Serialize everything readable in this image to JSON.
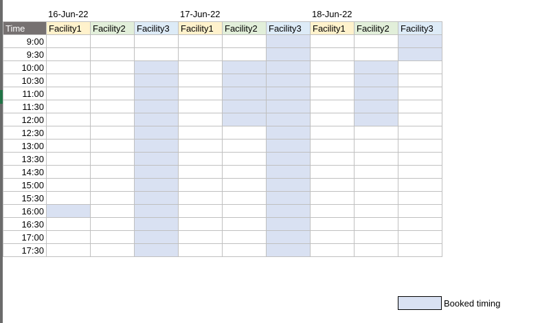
{
  "dates": [
    "16-Jun-22",
    "17-Jun-22",
    "18-Jun-22"
  ],
  "time_header": "Time",
  "facilities": [
    "Facility1",
    "Facility2",
    "Facility3"
  ],
  "facility_colors": {
    "Facility1": "#FFF2CC",
    "Facility2": "#E2EFDA",
    "Facility3": "#DDEBF7"
  },
  "booked_color": "#D9E1F2",
  "times": [
    "9:00",
    "9:30",
    "10:00",
    "10:30",
    "11:00",
    "11:30",
    "12:00",
    "12:30",
    "13:00",
    "13:30",
    "14:30",
    "15:00",
    "15:30",
    "16:00",
    "16:30",
    "17:00",
    "17:30"
  ],
  "bookings": {
    "16-Jun-22": {
      "Facility1": [
        "16:00"
      ],
      "Facility2": [],
      "Facility3": [
        "10:00",
        "10:30",
        "11:00",
        "11:30",
        "12:00",
        "12:30",
        "13:00",
        "13:30",
        "14:30",
        "15:00",
        "15:30",
        "16:00",
        "16:30",
        "17:00",
        "17:30"
      ]
    },
    "17-Jun-22": {
      "Facility1": [],
      "Facility2": [
        "10:00",
        "10:30",
        "11:00",
        "11:30",
        "12:00"
      ],
      "Facility3": [
        "9:00",
        "9:30",
        "10:00",
        "10:30",
        "11:00",
        "11:30",
        "12:00",
        "12:30",
        "13:00",
        "13:30",
        "14:30",
        "15:00",
        "15:30",
        "16:00",
        "16:30",
        "17:00",
        "17:30"
      ]
    },
    "18-Jun-22": {
      "Facility1": [],
      "Facility2": [
        "10:00",
        "10:30",
        "11:00",
        "11:30",
        "12:00"
      ],
      "Facility3": [
        "9:00",
        "9:30"
      ]
    }
  },
  "legend": {
    "label": "Booked timing"
  }
}
